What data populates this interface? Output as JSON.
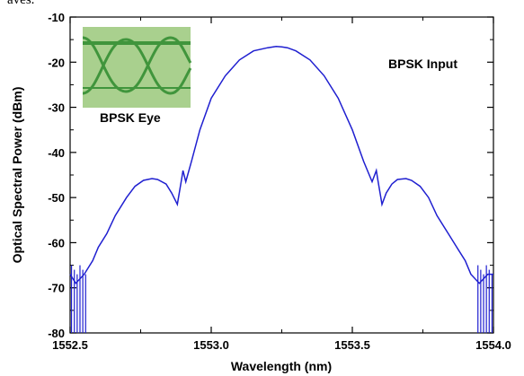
{
  "caption_fragment": "aves.",
  "chart_data": {
    "type": "line",
    "title": "",
    "xlabel": "Wavelength (nm)",
    "ylabel": "Optical Spectral Power (dBm)",
    "xlim": [
      1552.5,
      1554.0
    ],
    "ylim": [
      -80,
      -10
    ],
    "xticks": [
      1552.5,
      1553.0,
      1553.5,
      1554.0
    ],
    "xtick_labels": [
      "1552.5",
      "1553.0",
      "1553.5",
      "1554.0"
    ],
    "yticks": [
      -80,
      -70,
      -60,
      -50,
      -40,
      -30,
      -20,
      -10
    ],
    "ytick_labels": [
      "-80",
      "-70",
      "-60",
      "-50",
      "-40",
      "-30",
      "-20",
      "-10"
    ],
    "grid": false,
    "series": [
      {
        "color": "#1f1fd0",
        "x": [
          1552.5,
          1552.52,
          1552.55,
          1552.58,
          1552.6,
          1552.63,
          1552.66,
          1552.7,
          1552.73,
          1552.76,
          1552.79,
          1552.81,
          1552.84,
          1552.86,
          1552.88,
          1552.895,
          1552.9,
          1552.91,
          1552.93,
          1552.96,
          1553.0,
          1553.05,
          1553.1,
          1553.15,
          1553.2,
          1553.23,
          1553.25,
          1553.27,
          1553.3,
          1553.35,
          1553.4,
          1553.45,
          1553.5,
          1553.54,
          1553.57,
          1553.585,
          1553.59,
          1553.605,
          1553.62,
          1553.64,
          1553.66,
          1553.69,
          1553.71,
          1553.74,
          1553.77,
          1553.8,
          1553.84,
          1553.87,
          1553.9,
          1553.92,
          1553.95,
          1553.98,
          1554.0
        ],
        "values": [
          -67,
          -69,
          -67,
          -64,
          -61,
          -58,
          -54,
          -50,
          -47.5,
          -46.2,
          -45.8,
          -46,
          -47,
          -49,
          -51.5,
          -46,
          -44,
          -46.5,
          -42,
          -35,
          -28,
          -23,
          -19.5,
          -17.5,
          -16.8,
          -16.5,
          -16.6,
          -16.8,
          -17.5,
          -19.5,
          -23,
          -28,
          -35,
          -42,
          -46.5,
          -44,
          -46,
          -51.5,
          -49,
          -47,
          -46,
          -45.8,
          -46.2,
          -47.5,
          -50,
          -54,
          -58,
          -61,
          -64,
          -67,
          -69,
          -67,
          -67
        ]
      }
    ],
    "annotations": [
      "BPSK Input",
      "BPSK Eye"
    ],
    "inset": {
      "label": "BPSK Eye",
      "colors": {
        "background": "#a9d08e",
        "trace": "#2e8b2e"
      }
    }
  }
}
